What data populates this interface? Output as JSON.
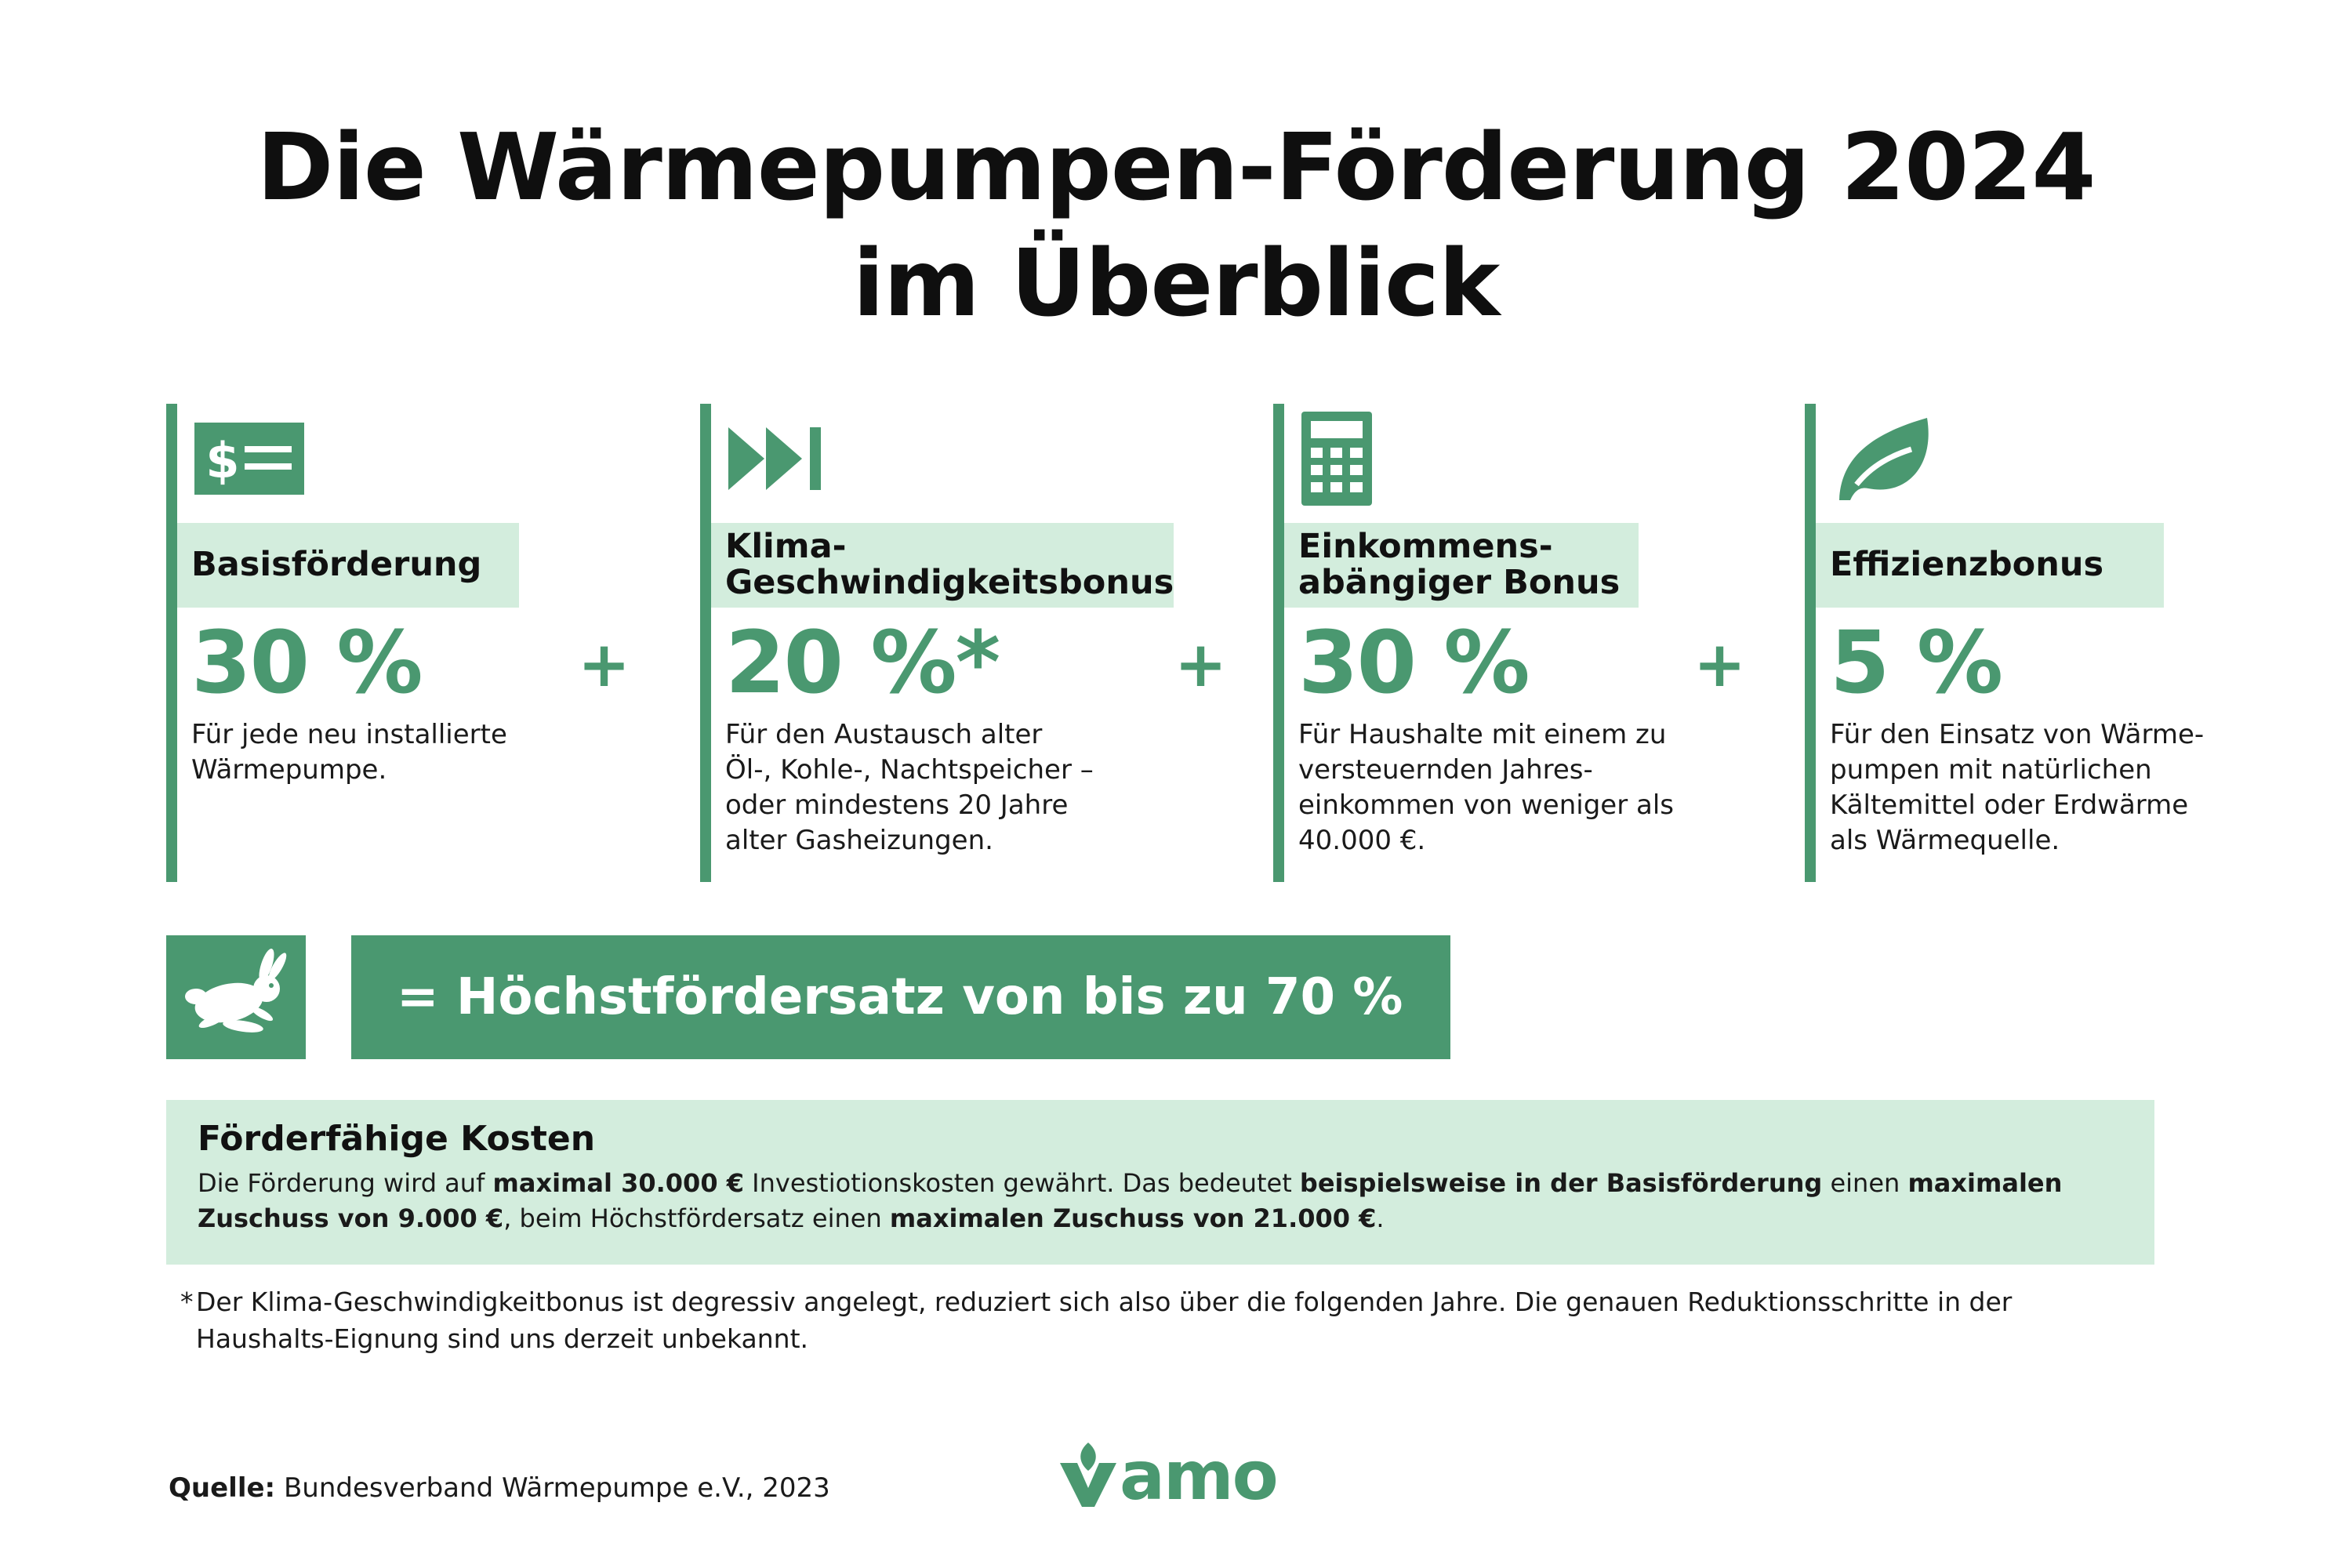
{
  "title": {
    "line1": "Die Wärmepumpen-Förderung 2024",
    "line2": "im Überblick"
  },
  "columns": [
    {
      "icon": "dollar-list-icon",
      "label": "Basisförderung",
      "percent": "30 %",
      "description": "Für jede neu installierte\nWärmepumpe."
    },
    {
      "icon": "fast-forward-icon",
      "label": "Klima-\nGeschwindigkeitsbonus",
      "percent": "20 %*",
      "description": "Für den Austausch alter\nÖl-, Kohle-, Nachtspeicher –\noder mindestens 20 Jahre\nalter Gasheizungen."
    },
    {
      "icon": "calculator-icon",
      "label": "Einkommens-\nabängiger Bonus",
      "percent": "30 %",
      "description": "Für Haushalte mit einem zu\nversteuernden Jahres-\neinkommen von weniger als\n40.000 €."
    },
    {
      "icon": "leaf-icon",
      "label": "Effizienzbonus",
      "percent": "5 %",
      "description": "Für den Einsatz von Wärme-\npumpen mit natürlichen\nKältemittel oder Erdwärme\nals Wärmequelle."
    }
  ],
  "plus_sign": "+",
  "max_rate": {
    "icon": "hare-icon",
    "text": "= Höchstfördersatz von bis zu 70 %"
  },
  "costs": {
    "heading": "Förderfähige Kosten",
    "t1": "Die Förderung wird auf ",
    "b1": "maximal 30.000 €",
    "t2": " Investiotionskosten gewährt. Das bedeutet ",
    "b2": "beispielsweise in der Basisförderung",
    "t3": " einen ",
    "b3": "maximalen Zuschuss von 9.000 €",
    "t4": ", beim Höchstfördersatz einen ",
    "b4": "maximalen Zuschuss von 21.000 €",
    "t5": "."
  },
  "footnote": {
    "marker": "*",
    "text": "Der Klima-Geschwindigkeitbonus ist degressiv angelegt, reduziert sich also über die folgenden Jahre. Die genauen Reduktionsschritte in der Haushalts-Eignung sind uns derzeit unbekannt."
  },
  "source": {
    "label": "Quelle:",
    "text": " Bundesverband Wärmepumpe e.V., 2023"
  },
  "logo": {
    "text": "amo",
    "icon": "vamo-leaf-v-logo"
  },
  "colors": {
    "accent": "#4a9870",
    "light_accent": "#d3eddd",
    "text": "#111111"
  }
}
